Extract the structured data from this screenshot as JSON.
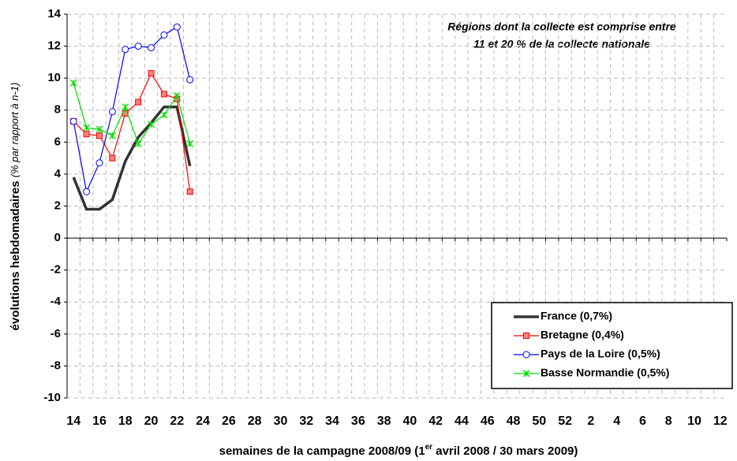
{
  "chart_data": {
    "type": "line",
    "annotation": [
      "Régions dont la collecte est comprise entre",
      "11 et 20 % de la collecte nationale"
    ],
    "y_label": [
      "évolutions hebdomadaires",
      "(% par rapport à n-1)"
    ],
    "x_label": [
      "semaines de la campagne 2008/09 (1",
      "er",
      " avril 2008 / 30 mars 2009)"
    ],
    "categories": [
      "14",
      null,
      "16",
      null,
      "18",
      null,
      "20",
      null,
      "22",
      null,
      "24",
      null,
      "26",
      null,
      "28",
      null,
      "30",
      null,
      "32",
      null,
      "34",
      null,
      "36",
      null,
      "38",
      null,
      "40",
      null,
      "42",
      null,
      "44",
      null,
      "46",
      null,
      "48",
      null,
      "50",
      null,
      "52",
      null,
      "2",
      null,
      "4",
      null,
      "6",
      null,
      "8",
      null,
      "10",
      null,
      "12"
    ],
    "ylim": [
      -10,
      14
    ],
    "yticks": [
      -10,
      -8,
      -6,
      -4,
      -2,
      0,
      2,
      4,
      6,
      8,
      10,
      12,
      14
    ],
    "grid": true,
    "legend": "lower right",
    "series": [
      {
        "name": "France (0,7%)",
        "color": "#333333",
        "marker": "none",
        "values": [
          3.8,
          1.8,
          1.8,
          2.4,
          4.8,
          6.3,
          7.2,
          8.2,
          8.2,
          4.5,
          null,
          null,
          null,
          null,
          null,
          null,
          null,
          null,
          null,
          null,
          null,
          null,
          null,
          null,
          null,
          null,
          null,
          null,
          null,
          null,
          null,
          null,
          null,
          null,
          null,
          null,
          null,
          null,
          null,
          null,
          null,
          null,
          null,
          null,
          null,
          null,
          null,
          null,
          null,
          null,
          null
        ]
      },
      {
        "name": "Bretagne (0,4%)",
        "color": "#ff0000",
        "marker": "square",
        "values": [
          7.3,
          6.5,
          6.4,
          5.0,
          7.8,
          8.5,
          10.3,
          9.0,
          8.7,
          2.9,
          null,
          null,
          null,
          null,
          null,
          null,
          null,
          null,
          null,
          null,
          null,
          null,
          null,
          null,
          null,
          null,
          null,
          null,
          null,
          null,
          null,
          null,
          null,
          null,
          null,
          null,
          null,
          null,
          null,
          null,
          null,
          null,
          null,
          null,
          null,
          null,
          null,
          null,
          null,
          null,
          null
        ]
      },
      {
        "name": "Pays de la Loire (0,5%)",
        "color": "#0000ff",
        "marker": "circle",
        "values": [
          7.3,
          2.9,
          4.7,
          7.9,
          11.8,
          12.0,
          11.9,
          12.7,
          13.2,
          9.9,
          null,
          null,
          null,
          null,
          null,
          null,
          null,
          null,
          null,
          null,
          null,
          null,
          null,
          null,
          null,
          null,
          null,
          null,
          null,
          null,
          null,
          null,
          null,
          null,
          null,
          null,
          null,
          null,
          null,
          null,
          null,
          null,
          null,
          null,
          null,
          null,
          null,
          null,
          null,
          null,
          null
        ]
      },
      {
        "name": "Basse Normandie (0,5%)",
        "color": "#00dd00",
        "marker": "star",
        "values": [
          9.7,
          6.9,
          6.8,
          6.4,
          8.2,
          5.9,
          7.1,
          7.7,
          8.9,
          5.9,
          null,
          null,
          null,
          null,
          null,
          null,
          null,
          null,
          null,
          null,
          null,
          null,
          null,
          null,
          null,
          null,
          null,
          null,
          null,
          null,
          null,
          null,
          null,
          null,
          null,
          null,
          null,
          null,
          null,
          null,
          null,
          null,
          null,
          null,
          null,
          null,
          null,
          null,
          null,
          null,
          null
        ]
      }
    ]
  }
}
